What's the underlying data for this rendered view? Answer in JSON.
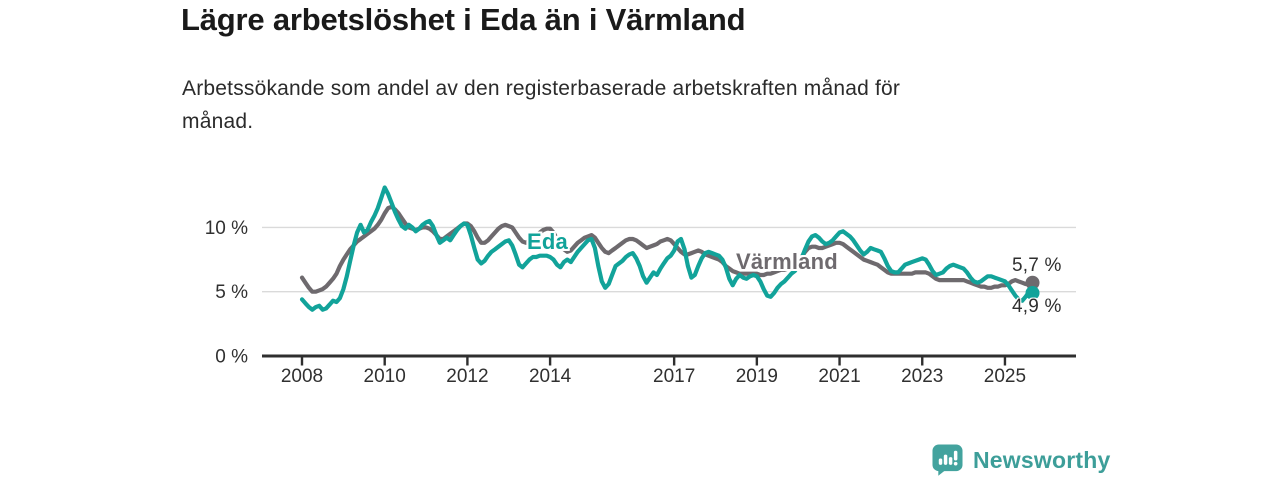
{
  "header": {
    "title": "Lägre arbetslöshet i Eda än i Värmland",
    "subtitle_lines": [
      "Arbetssökande som andel av den registerbaserade arbetskraften månad för",
      "månad."
    ]
  },
  "chart_data": {
    "type": "line",
    "unit": "%",
    "x_interval": "monthly",
    "x_start_year": 2008,
    "x_end": "2025-09",
    "x_ticks": [
      2008,
      2010,
      2012,
      2014,
      2017,
      2019,
      2021,
      2023,
      2025
    ],
    "y_ticks": [
      {
        "value": 0,
        "label": "0 %"
      },
      {
        "value": 5,
        "label": "5 %"
      },
      {
        "value": 10,
        "label": "10 %"
      }
    ],
    "ylim": [
      0,
      14
    ],
    "grid": "horizontal-only",
    "legend_position": "inline-labels-on-lines",
    "series": [
      {
        "name": "Eda",
        "color": "#12a39a",
        "end_label": "4,9 %",
        "last_value": 4.9,
        "values": [
          4.4,
          4.1,
          3.8,
          3.6,
          3.8,
          3.9,
          3.6,
          3.7,
          4.0,
          4.3,
          4.2,
          4.5,
          5.2,
          6.2,
          7.4,
          8.6,
          9.6,
          10.2,
          9.6,
          9.8,
          10.4,
          10.9,
          11.5,
          12.3,
          13.1,
          12.6,
          11.9,
          11.2,
          10.6,
          10.1,
          9.9,
          10.2,
          10.0,
          9.7,
          9.9,
          10.2,
          10.4,
          10.5,
          10.1,
          9.4,
          8.8,
          9.0,
          9.2,
          9.0,
          9.4,
          9.8,
          10.1,
          10.3,
          10.2,
          9.4,
          8.4,
          7.5,
          7.2,
          7.4,
          7.8,
          8.1,
          8.3,
          8.5,
          8.7,
          8.9,
          9.0,
          8.6,
          7.9,
          7.1,
          6.9,
          7.2,
          7.5,
          7.7,
          7.7,
          7.8,
          7.8,
          7.8,
          7.7,
          7.5,
          7.1,
          6.9,
          7.3,
          7.5,
          7.3,
          7.7,
          8.1,
          8.4,
          8.7,
          9.0,
          9.1,
          8.4,
          7.0,
          5.8,
          5.3,
          5.6,
          6.3,
          7.0,
          7.2,
          7.4,
          7.7,
          7.9,
          8.0,
          7.6,
          7.0,
          6.2,
          5.7,
          6.1,
          6.5,
          6.3,
          6.8,
          7.2,
          7.6,
          7.8,
          8.2,
          8.9,
          9.1,
          8.3,
          7.0,
          6.1,
          6.3,
          7.0,
          7.6,
          8.0,
          8.1,
          8.0,
          7.9,
          7.8,
          7.5,
          6.9,
          6.0,
          5.5,
          6.0,
          6.3,
          6.1,
          6.0,
          6.2,
          6.3,
          6.2,
          5.8,
          5.2,
          4.7,
          4.6,
          4.9,
          5.3,
          5.6,
          5.8,
          6.1,
          6.4,
          6.6,
          7.0,
          7.6,
          8.3,
          8.9,
          9.3,
          9.4,
          9.2,
          8.9,
          8.7,
          8.8,
          9.0,
          9.3,
          9.6,
          9.7,
          9.5,
          9.3,
          9.0,
          8.6,
          8.2,
          7.9,
          8.1,
          8.4,
          8.3,
          8.2,
          8.1,
          7.6,
          7.0,
          6.6,
          6.5,
          6.5,
          6.8,
          7.1,
          7.2,
          7.3,
          7.4,
          7.5,
          7.6,
          7.5,
          7.1,
          6.6,
          6.3,
          6.4,
          6.5,
          6.8,
          7.0,
          7.1,
          7.0,
          6.9,
          6.8,
          6.5,
          6.1,
          5.8,
          5.7,
          5.8,
          6.0,
          6.2,
          6.2,
          6.1,
          6.0,
          5.9,
          5.8,
          5.5,
          5.1,
          4.7,
          4.4,
          4.3,
          4.6,
          5.0,
          4.9
        ]
      },
      {
        "name": "Värmland",
        "color": "#6e6a6e",
        "end_label": "5,7 %",
        "last_value": 5.7,
        "values": [
          6.1,
          5.7,
          5.3,
          5.0,
          5.0,
          5.1,
          5.2,
          5.4,
          5.7,
          6.0,
          6.4,
          7.0,
          7.5,
          7.9,
          8.3,
          8.6,
          8.9,
          9.1,
          9.3,
          9.5,
          9.7,
          9.9,
          10.2,
          10.6,
          11.1,
          11.5,
          11.6,
          11.4,
          11.1,
          10.7,
          10.3,
          10.0,
          9.9,
          9.8,
          9.9,
          10.0,
          10.0,
          9.9,
          9.7,
          9.4,
          9.1,
          9.1,
          9.3,
          9.5,
          9.7,
          9.9,
          10.1,
          10.3,
          10.3,
          10.1,
          9.7,
          9.2,
          8.8,
          8.8,
          9.0,
          9.3,
          9.6,
          9.9,
          10.1,
          10.2,
          10.1,
          10.0,
          9.6,
          9.2,
          8.9,
          8.8,
          9.0,
          9.2,
          9.4,
          9.6,
          9.8,
          9.9,
          9.9,
          9.6,
          9.1,
          8.6,
          8.3,
          8.1,
          8.2,
          8.5,
          8.8,
          9.0,
          9.2,
          9.3,
          9.4,
          9.2,
          8.8,
          8.4,
          8.1,
          8.0,
          8.2,
          8.4,
          8.6,
          8.8,
          9.0,
          9.1,
          9.1,
          9.0,
          8.8,
          8.6,
          8.4,
          8.5,
          8.6,
          8.7,
          8.9,
          9.0,
          9.1,
          9.0,
          8.7,
          8.4,
          8.1,
          7.9,
          7.9,
          8.0,
          8.1,
          8.2,
          8.1,
          7.9,
          7.8,
          7.7,
          7.6,
          7.5,
          7.3,
          7.0,
          6.8,
          6.6,
          6.5,
          6.4,
          6.4,
          6.4,
          6.4,
          6.4,
          6.4,
          6.3,
          6.3,
          6.4,
          6.4,
          6.5,
          6.6,
          6.7,
          6.7,
          6.8,
          6.9,
          7.0,
          7.3,
          7.7,
          8.1,
          8.4,
          8.5,
          8.5,
          8.4,
          8.4,
          8.5,
          8.6,
          8.7,
          8.8,
          8.8,
          8.7,
          8.5,
          8.3,
          8.1,
          7.9,
          7.7,
          7.5,
          7.4,
          7.3,
          7.2,
          7.1,
          6.9,
          6.7,
          6.5,
          6.4,
          6.4,
          6.4,
          6.4,
          6.4,
          6.4,
          6.4,
          6.5,
          6.5,
          6.5,
          6.5,
          6.4,
          6.2,
          6.0,
          5.9,
          5.9,
          5.9,
          5.9,
          5.9,
          5.9,
          5.9,
          5.9,
          5.8,
          5.7,
          5.6,
          5.5,
          5.4,
          5.4,
          5.3,
          5.3,
          5.4,
          5.4,
          5.5,
          5.5,
          5.6,
          5.8,
          5.9,
          5.8,
          5.7,
          5.6,
          5.6,
          5.7
        ]
      }
    ]
  },
  "footer": {
    "brand": "Newsworthy",
    "brand_color": "#3d9e99"
  }
}
